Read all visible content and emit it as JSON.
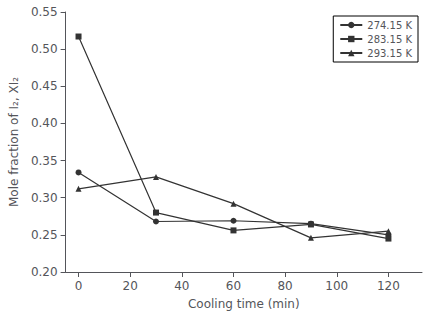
{
  "chart_data": {
    "type": "line",
    "xlabel": "Cooling time (min)",
    "ylabel": "Mole fraction of I₂, XI₂",
    "xlim": [
      -5,
      133
    ],
    "ylim": [
      0.2,
      0.55
    ],
    "xticks": [
      0,
      20,
      40,
      60,
      80,
      100,
      120
    ],
    "yticks": [
      {
        "value": 0.2,
        "label": "0.20"
      },
      0.25,
      {
        "value": 0.3,
        "label": "0.30"
      },
      0.35,
      {
        "value": 0.4,
        "label": "0.40"
      },
      0.45,
      {
        "value": 0.5,
        "label": "0.50"
      },
      0.55
    ],
    "grid": false,
    "legend": "upper right",
    "series": [
      {
        "name": "274.15 K",
        "x": [
          0,
          30,
          60,
          90,
          120
        ],
        "values": [
          0.334,
          0.268,
          0.269,
          0.265,
          0.25
        ],
        "marker": "circle",
        "color": "#333333",
        "line_style": "solid"
      },
      {
        "name": "283.15 K",
        "x": [
          0,
          30,
          60,
          90,
          120
        ],
        "values": [
          0.517,
          0.28,
          0.256,
          0.264,
          0.245
        ],
        "marker": "square",
        "color": "#333333",
        "line_style": "solid"
      },
      {
        "name": "293.15 K",
        "x": [
          0,
          30,
          60,
          90,
          120
        ],
        "values": [
          0.312,
          0.328,
          0.292,
          0.246,
          0.255
        ],
        "marker": "triangle",
        "color": "#333333",
        "line_style": "solid"
      }
    ]
  }
}
